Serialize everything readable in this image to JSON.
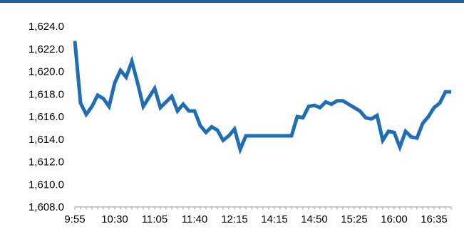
{
  "colors": {
    "series": "#1f6db5",
    "top_rule": "#1f5f9e",
    "axis": "#999999"
  },
  "chart_data": {
    "type": "line",
    "title": "",
    "xlabel": "",
    "ylabel": "",
    "ylim": [
      1608.0,
      1624.0
    ],
    "yticks": [
      "1,608.0",
      "1,610.0",
      "1,612.0",
      "1,614.0",
      "1,616.0",
      "1,618.0",
      "1,620.0",
      "1,622.0",
      "1,624.0"
    ],
    "ytick_values": [
      1608,
      1610,
      1612,
      1614,
      1616,
      1618,
      1620,
      1622,
      1624
    ],
    "xtick_labels": [
      "9:55",
      "10:30",
      "11:05",
      "11:40",
      "12:15",
      "14:15",
      "14:50",
      "15:25",
      "16:00",
      "16:35"
    ],
    "xtick_index": [
      0,
      7,
      14,
      21,
      28,
      35,
      42,
      49,
      56,
      63
    ],
    "grid": false,
    "legend": "none",
    "series": [
      {
        "values": [
          1622.7,
          1617.2,
          1616.2,
          1616.9,
          1617.9,
          1617.6,
          1616.9,
          1619.0,
          1620.1,
          1619.5,
          1620.9,
          1619.0,
          1616.9,
          1617.7,
          1618.5,
          1616.8,
          1617.3,
          1617.8,
          1616.5,
          1617.1,
          1616.5,
          1616.5,
          1615.2,
          1614.6,
          1615.1,
          1614.8,
          1613.9,
          1614.3,
          1614.9,
          1613.1,
          1614.3,
          1614.3,
          1614.3,
          1614.3,
          1614.3,
          1614.3,
          1614.3,
          1614.3,
          1614.3,
          1616.0,
          1615.9,
          1616.9,
          1617.0,
          1616.8,
          1617.3,
          1617.1,
          1617.4,
          1617.4,
          1617.1,
          1616.8,
          1616.5,
          1615.9,
          1615.8,
          1616.1,
          1613.9,
          1614.7,
          1614.6,
          1613.3,
          1614.7,
          1614.2,
          1614.1,
          1615.4,
          1616.0,
          1616.8,
          1617.2,
          1618.2,
          1618.2
        ]
      }
    ]
  }
}
